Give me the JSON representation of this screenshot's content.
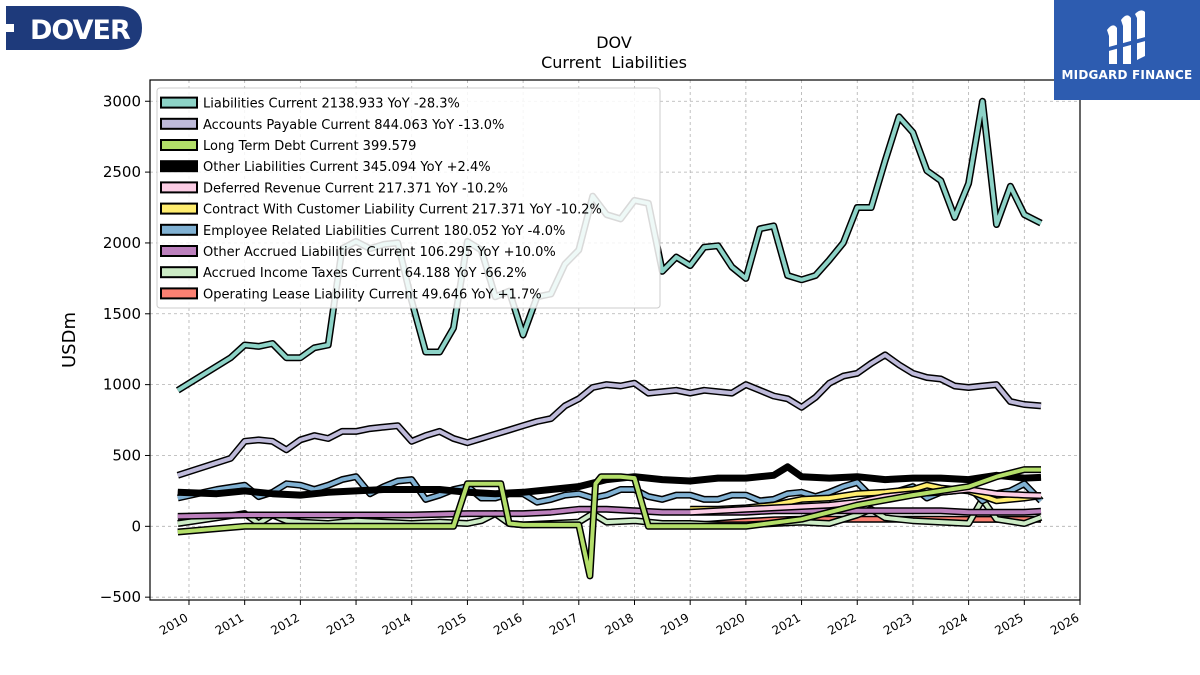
{
  "header": {
    "ticker": "DOV",
    "subtitle": "Current  Liabilities"
  },
  "logos": {
    "company": "DOVER",
    "publisher": "MIDGARD FINANCE",
    "company_color": "#1e3a7b",
    "publisher_color": "#2d5cb0"
  },
  "chart_data": {
    "type": "line",
    "title": "DOV\nCurrent  Liabilities",
    "xlabel": "",
    "ylabel": "USDm",
    "xlim": [
      2009.3,
      2026.0
    ],
    "ylim": [
      -520,
      3150
    ],
    "x_ticks": [
      2010,
      2011,
      2012,
      2013,
      2014,
      2015,
      2016,
      2017,
      2018,
      2019,
      2020,
      2021,
      2022,
      2023,
      2024,
      2025,
      2026
    ],
    "y_ticks": [
      -500,
      0,
      500,
      1000,
      1500,
      2000,
      2500,
      3000
    ],
    "grid": true,
    "legend_position": "upper-left",
    "series": [
      {
        "name": "Liabilities Current  2138.933 YoY -28.3%",
        "color": "#8dd3c7",
        "x": [
          2009.8,
          2010.75,
          2011.0,
          2011.25,
          2011.5,
          2011.75,
          2012.0,
          2012.25,
          2012.5,
          2012.75,
          2013.0,
          2013.25,
          2013.5,
          2013.75,
          2014.0,
          2014.25,
          2014.5,
          2014.75,
          2015.0,
          2015.25,
          2015.5,
          2015.75,
          2016.0,
          2016.25,
          2016.5,
          2016.75,
          2017.0,
          2017.25,
          2017.5,
          2017.75,
          2018.0,
          2018.25,
          2018.5,
          2018.75,
          2019.0,
          2019.25,
          2019.5,
          2019.75,
          2020.0,
          2020.25,
          2020.5,
          2020.75,
          2021.0,
          2021.25,
          2021.5,
          2021.75,
          2022.0,
          2022.25,
          2022.5,
          2022.75,
          2023.0,
          2023.25,
          2023.5,
          2023.75,
          2024.0,
          2024.25,
          2024.5,
          2024.75,
          2025.0,
          2025.3
        ],
        "y": [
          960,
          1190,
          1280,
          1270,
          1290,
          1190,
          1190,
          1260,
          1280,
          1960,
          2010,
          1960,
          1990,
          2000,
          1590,
          1230,
          1230,
          1400,
          2010,
          1950,
          1620,
          1660,
          1350,
          1620,
          1640,
          1850,
          1950,
          2330,
          2200,
          2170,
          2300,
          2280,
          1800,
          1900,
          1840,
          1970,
          1980,
          1830,
          1750,
          2100,
          2120,
          1770,
          1740,
          1770,
          1880,
          2000,
          2250,
          2250,
          2580,
          2890,
          2780,
          2510,
          2440,
          2180,
          2420,
          3000,
          2130,
          2400,
          2200,
          2140
        ]
      },
      {
        "name": "Accounts Payable Current  844.063 YoY -13.0%",
        "color": "#bebada",
        "x": [
          2009.8,
          2010.75,
          2011.0,
          2011.25,
          2011.5,
          2011.75,
          2012.0,
          2012.25,
          2012.5,
          2012.75,
          2013.0,
          2013.25,
          2013.5,
          2013.75,
          2014.0,
          2014.25,
          2014.5,
          2014.75,
          2015.0,
          2015.25,
          2015.5,
          2015.75,
          2016.0,
          2016.25,
          2016.5,
          2016.75,
          2017.0,
          2017.25,
          2017.5,
          2017.75,
          2018.0,
          2018.25,
          2018.5,
          2018.75,
          2019.0,
          2019.25,
          2019.5,
          2019.75,
          2020.0,
          2020.25,
          2020.5,
          2020.75,
          2021.0,
          2021.25,
          2021.5,
          2021.75,
          2022.0,
          2022.25,
          2022.5,
          2022.75,
          2023.0,
          2023.25,
          2023.5,
          2023.75,
          2024.0,
          2024.25,
          2024.5,
          2024.75,
          2025.0,
          2025.3
        ],
        "y": [
          360,
          480,
          600,
          610,
          600,
          540,
          610,
          640,
          620,
          670,
          670,
          690,
          700,
          710,
          600,
          640,
          670,
          620,
          590,
          620,
          650,
          680,
          710,
          740,
          760,
          850,
          900,
          980,
          1000,
          990,
          1010,
          940,
          950,
          960,
          940,
          960,
          950,
          940,
          1000,
          960,
          920,
          900,
          840,
          910,
          1010,
          1060,
          1080,
          1150,
          1210,
          1140,
          1080,
          1050,
          1040,
          990,
          980,
          990,
          1000,
          880,
          860,
          850
        ]
      },
      {
        "name": "Long Term Debt Current  399.579",
        "color": "#b3de69",
        "x": [
          2009.8,
          2011.0,
          2012.0,
          2013.0,
          2014.0,
          2014.75,
          2015.0,
          2015.25,
          2015.6,
          2015.75,
          2016.0,
          2017.0,
          2017.2,
          2017.3,
          2017.4,
          2017.75,
          2018.0,
          2018.25,
          2018.5,
          2019.0,
          2020.0,
          2021.0,
          2022.0,
          2023.0,
          2024.0,
          2024.5,
          2025.0,
          2025.3
        ],
        "y": [
          -40,
          0,
          0,
          0,
          0,
          0,
          300,
          300,
          300,
          20,
          10,
          10,
          -350,
          300,
          350,
          350,
          340,
          0,
          0,
          0,
          0,
          50,
          150,
          220,
          280,
          350,
          400,
          400
        ]
      },
      {
        "name": "Other Liabilities Current  345.094 YoY +2.4%",
        "color": "#000000",
        "x": [
          2009.8,
          2010.5,
          2011.0,
          2011.5,
          2012.0,
          2012.5,
          2013.0,
          2013.5,
          2014.0,
          2014.5,
          2015.0,
          2015.5,
          2016.0,
          2016.5,
          2017.0,
          2017.5,
          2018.0,
          2018.5,
          2019.0,
          2019.5,
          2020.0,
          2020.5,
          2020.75,
          2021.0,
          2021.5,
          2022.0,
          2022.5,
          2023.0,
          2023.5,
          2024.0,
          2024.5,
          2025.0,
          2025.3
        ],
        "y": [
          240,
          230,
          250,
          230,
          220,
          240,
          250,
          260,
          260,
          260,
          240,
          230,
          240,
          260,
          280,
          330,
          350,
          330,
          320,
          340,
          340,
          360,
          420,
          350,
          340,
          350,
          330,
          340,
          340,
          330,
          360,
          340,
          345
        ]
      },
      {
        "name": "Deferred Revenue Current  217.371 YoY -10.2%",
        "color": "#fccde5",
        "x": [
          2019.0,
          2019.5,
          2020.0,
          2020.5,
          2021.0,
          2021.5,
          2022.0,
          2022.5,
          2023.0,
          2023.5,
          2024.0,
          2024.5,
          2025.0,
          2025.3
        ],
        "y": [
          100,
          110,
          120,
          130,
          140,
          150,
          170,
          210,
          230,
          240,
          260,
          230,
          220,
          217
        ]
      },
      {
        "name": "Contract With Customer Liability Current  217.371 YoY -10.2%",
        "color": "#ffed6f",
        "x": [
          2019.0,
          2019.5,
          2020.0,
          2020.5,
          2021.0,
          2021.5,
          2022.0,
          2022.5,
          2023.0,
          2023.25,
          2023.5,
          2024.0,
          2024.5,
          2025.0,
          2025.3
        ],
        "y": [
          120,
          120,
          130,
          150,
          190,
          200,
          230,
          240,
          260,
          290,
          270,
          250,
          180,
          200,
          217
        ]
      },
      {
        "name": "Employee Related Liabilities Current  180.052 YoY -4.0%",
        "color": "#80b1d3",
        "x": [
          2009.8,
          2010.5,
          2011.0,
          2011.25,
          2011.5,
          2011.75,
          2012.0,
          2012.25,
          2012.5,
          2012.75,
          2013.0,
          2013.25,
          2013.5,
          2013.75,
          2014.0,
          2014.25,
          2014.5,
          2014.75,
          2015.0,
          2015.25,
          2015.5,
          2015.75,
          2016.0,
          2016.25,
          2016.5,
          2016.75,
          2017.0,
          2017.25,
          2017.5,
          2017.75,
          2018.0,
          2018.25,
          2018.5,
          2018.75,
          2019.0,
          2019.25,
          2019.5,
          2019.75,
          2020.0,
          2020.25,
          2020.5,
          2020.75,
          2021.0,
          2021.25,
          2021.5,
          2021.75,
          2022.0,
          2022.25,
          2022.5,
          2022.75,
          2023.0,
          2023.25,
          2023.5,
          2023.75,
          2024.0,
          2024.25,
          2024.5,
          2024.75,
          2025.0,
          2025.3
        ],
        "y": [
          200,
          260,
          290,
          210,
          240,
          300,
          290,
          260,
          290,
          330,
          350,
          230,
          280,
          320,
          330,
          190,
          220,
          260,
          280,
          200,
          200,
          230,
          230,
          170,
          190,
          220,
          230,
          200,
          220,
          260,
          260,
          210,
          190,
          220,
          220,
          190,
          190,
          220,
          220,
          180,
          190,
          230,
          240,
          210,
          240,
          280,
          310,
          210,
          230,
          250,
          280,
          200,
          240,
          250,
          280,
          180,
          230,
          250,
          300,
          180
        ]
      },
      {
        "name": "Other Accrued Liabilities Current  106.295 YoY +10.0%",
        "color": "#bc80bd",
        "x": [
          2009.8,
          2011.0,
          2012.0,
          2013.0,
          2014.0,
          2015.0,
          2016.0,
          2016.5,
          2017.0,
          2017.5,
          2018.0,
          2018.5,
          2019.0,
          2019.5,
          2020.0,
          2020.5,
          2021.0,
          2021.5,
          2022.0,
          2022.5,
          2023.0,
          2023.5,
          2024.0,
          2024.5,
          2025.0,
          2025.3
        ],
        "y": [
          70,
          80,
          80,
          80,
          80,
          90,
          90,
          100,
          120,
          120,
          110,
          100,
          100,
          100,
          100,
          110,
          110,
          110,
          110,
          110,
          110,
          110,
          100,
          100,
          100,
          106
        ]
      },
      {
        "name": "Accrued Income Taxes Current  64.188 YoY -66.2%",
        "color": "#ccebc5",
        "x": [
          2009.8,
          2010.5,
          2011.0,
          2011.25,
          2011.5,
          2011.75,
          2012.0,
          2012.5,
          2013.0,
          2013.5,
          2014.0,
          2014.5,
          2015.0,
          2015.25,
          2015.5,
          2015.75,
          2016.0,
          2016.5,
          2017.0,
          2017.25,
          2017.5,
          2018.0,
          2018.5,
          2019.0,
          2019.5,
          2020.0,
          2020.5,
          2021.0,
          2021.5,
          2022.0,
          2022.25,
          2022.5,
          2023.0,
          2023.5,
          2024.0,
          2024.25,
          2024.5,
          2025.0,
          2025.3
        ],
        "y": [
          20,
          60,
          90,
          20,
          80,
          40,
          30,
          20,
          40,
          30,
          20,
          30,
          20,
          40,
          90,
          20,
          10,
          20,
          30,
          90,
          30,
          40,
          20,
          20,
          10,
          10,
          20,
          30,
          20,
          80,
          120,
          60,
          40,
          30,
          20,
          190,
          50,
          20,
          64
        ]
      },
      {
        "name": "Operating Lease Liability Current  49.646 YoY +1.7%",
        "color": "#fb8072",
        "x": [
          2019.0,
          2019.5,
          2020.0,
          2020.5,
          2021.0,
          2021.5,
          2022.0,
          2022.5,
          2023.0,
          2023.5,
          2024.0,
          2024.5,
          2025.0,
          2025.3
        ],
        "y": [
          5,
          20,
          35,
          45,
          50,
          50,
          50,
          50,
          50,
          50,
          49,
          49,
          49,
          50
        ]
      }
    ]
  }
}
